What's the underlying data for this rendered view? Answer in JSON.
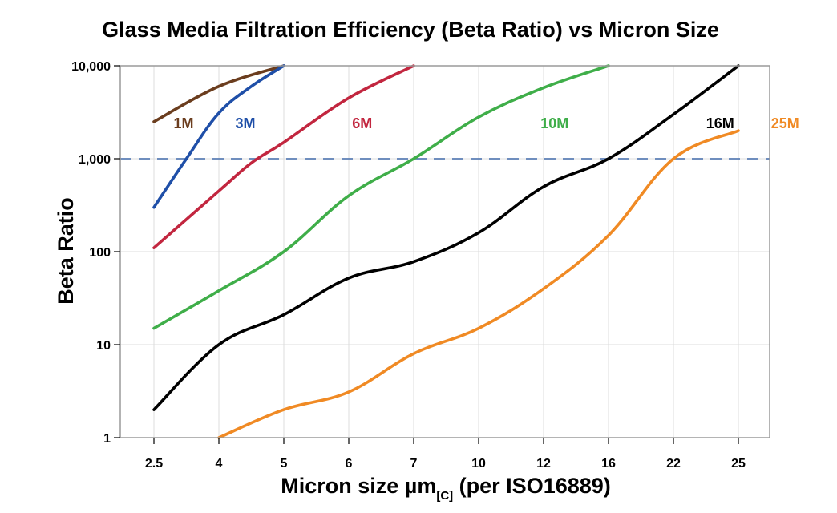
{
  "chart_data": {
    "type": "line",
    "title": "Glass Media Filtration Efficiency (Beta Ratio) vs Micron Size",
    "ylabel": "Beta Ratio",
    "xlabel_main": "Micron size µm",
    "xlabel_sub": "[C]",
    "xlabel_tail": " (per ISO16889)",
    "yscale": "log",
    "ylim": [
      1,
      10000
    ],
    "y_ticks": [
      {
        "value": 1,
        "label": "1"
      },
      {
        "value": 10,
        "label": "10"
      },
      {
        "value": 100,
        "label": "100"
      },
      {
        "value": 1000,
        "label": "1,000"
      },
      {
        "value": 10000,
        "label": "10,000"
      }
    ],
    "categories": [
      "2.5",
      "4",
      "5",
      "6",
      "7",
      "10",
      "12",
      "16",
      "22",
      "25"
    ],
    "reference_line": {
      "value": 1000,
      "style": "dashed"
    },
    "series": [
      {
        "name": "1M",
        "color": "#6b3d1e",
        "points": [
          [
            0,
            2500
          ],
          [
            1,
            6000
          ],
          [
            2,
            10000
          ]
        ]
      },
      {
        "name": "3M",
        "color": "#1f4fa8",
        "points": [
          [
            0,
            300
          ],
          [
            0.5,
            1000
          ],
          [
            1,
            3100
          ],
          [
            1.5,
            6000
          ],
          [
            2,
            10000
          ]
        ]
      },
      {
        "name": "6M",
        "color": "#c2263f",
        "points": [
          [
            0,
            110
          ],
          [
            1,
            450
          ],
          [
            1.5,
            900
          ],
          [
            2,
            1500
          ],
          [
            3,
            4500
          ],
          [
            4,
            10000
          ]
        ]
      },
      {
        "name": "10M",
        "color": "#3fae49",
        "points": [
          [
            0,
            15
          ],
          [
            1,
            38
          ],
          [
            2,
            100
          ],
          [
            3,
            400
          ],
          [
            4,
            1000
          ],
          [
            5,
            2800
          ],
          [
            6,
            5800
          ],
          [
            7,
            10000
          ]
        ]
      },
      {
        "name": "16M",
        "color": "#000000",
        "points": [
          [
            0,
            2
          ],
          [
            1,
            10
          ],
          [
            2,
            21
          ],
          [
            3,
            52
          ],
          [
            4,
            78
          ],
          [
            5,
            160
          ],
          [
            6,
            500
          ],
          [
            7,
            1000
          ],
          [
            8,
            3000
          ],
          [
            9,
            10000
          ]
        ]
      },
      {
        "name": "25M",
        "color": "#f08a24",
        "points": [
          [
            1,
            1
          ],
          [
            2,
            2
          ],
          [
            3,
            3.1
          ],
          [
            4,
            8
          ],
          [
            5,
            15
          ],
          [
            6,
            40
          ],
          [
            7,
            150
          ],
          [
            8,
            1000
          ],
          [
            9,
            2000
          ]
        ]
      }
    ]
  }
}
